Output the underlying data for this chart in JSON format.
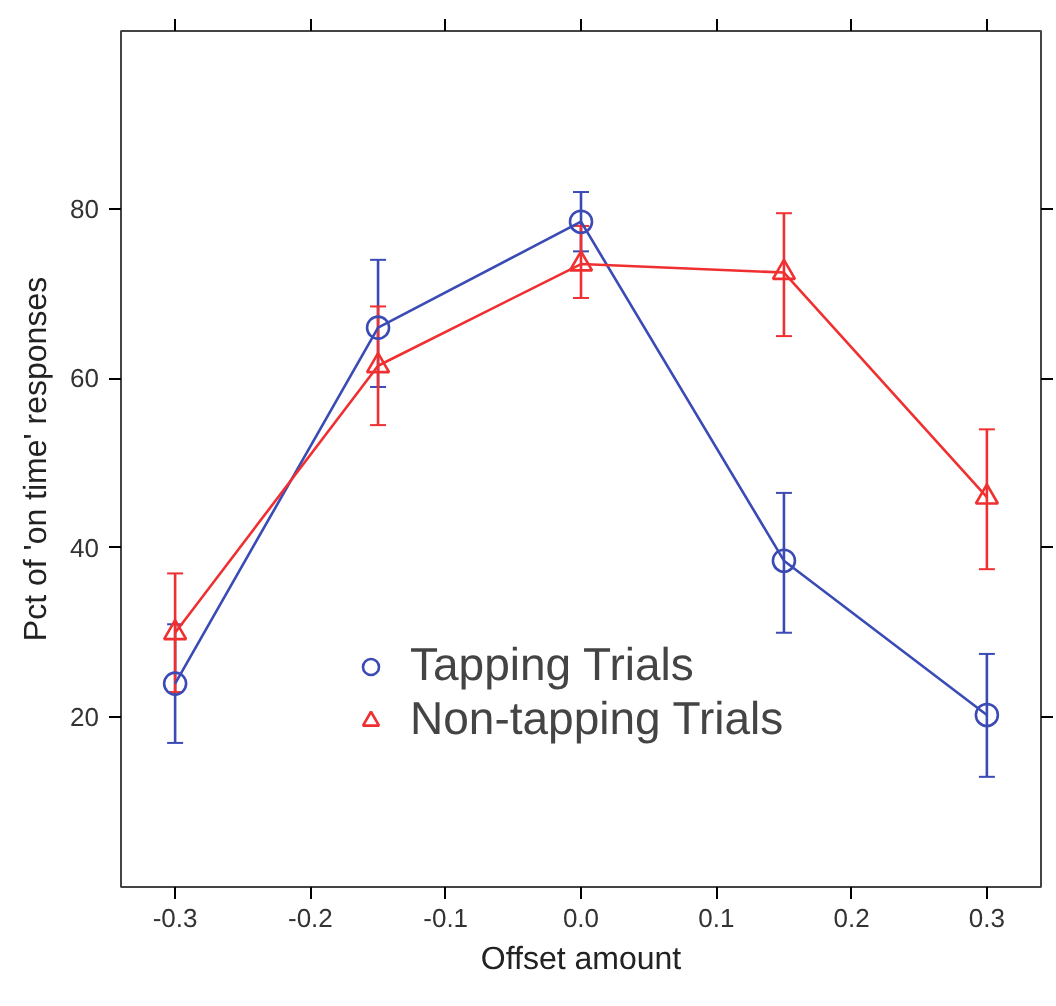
{
  "chart_data": {
    "type": "line",
    "xlabel": "Offset amount",
    "ylabel": "Pct of 'on time' responses",
    "x": [
      -0.3,
      -0.15,
      0.0,
      0.15,
      0.3
    ],
    "series": [
      {
        "name": "Tapping Trials",
        "color": "#3b4bb5",
        "marker": "circle",
        "values": [
          24,
          66,
          78.5,
          38.5,
          20.3
        ],
        "errors": [
          [
            17,
            31
          ],
          [
            59,
            74
          ],
          [
            75,
            82
          ],
          [
            30,
            46.5
          ],
          [
            13,
            27.5
          ]
        ]
      },
      {
        "name": "Non-tapping Trials",
        "color": "#f03030",
        "marker": "triangle",
        "values": [
          30,
          61.5,
          73.5,
          72.5,
          46
        ],
        "errors": [
          [
            23,
            37
          ],
          [
            54.5,
            68.5
          ],
          [
            69.5,
            78
          ],
          [
            65,
            79.5
          ],
          [
            37.5,
            54
          ]
        ]
      }
    ],
    "xlim": [
      -0.34,
      0.34
    ],
    "ylim": [
      0,
      101
    ],
    "xticks": [
      {
        "value": -0.3,
        "label": "-0.3"
      },
      {
        "value": -0.2,
        "label": "-0.2"
      },
      {
        "value": -0.1,
        "label": "-0.1"
      },
      {
        "value": 0,
        "label": "0.0"
      },
      {
        "value": 0.1,
        "label": "0.1"
      },
      {
        "value": 0.2,
        "label": "0.2"
      },
      {
        "value": 0.3,
        "label": "0.3"
      }
    ],
    "yticks": [
      20,
      40,
      60,
      80
    ],
    "grid": false,
    "legend": "bottom",
    "line_style": "solid"
  }
}
